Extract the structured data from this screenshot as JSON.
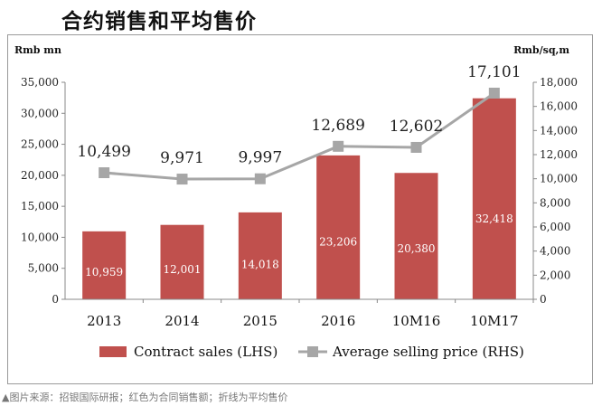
{
  "chart_data": {
    "type": "bar",
    "title": "合约销售和平均售价",
    "categories": [
      "2013",
      "2014",
      "2015",
      "2016",
      "10M16",
      "10M17"
    ],
    "series": [
      {
        "name": "Contract sales (LHS)",
        "type": "bar",
        "axis": "left",
        "color": "#c0504d",
        "values": [
          10959,
          12001,
          14018,
          23206,
          20380,
          32418
        ],
        "labels": [
          "10,959",
          "12,001",
          "14,018",
          "23,206",
          "20,380",
          "32,418"
        ]
      },
      {
        "name": "Average selling price (RHS)",
        "type": "line",
        "axis": "right",
        "color": "#a6a6a6",
        "values": [
          10499,
          9971,
          9997,
          12689,
          12602,
          17101
        ],
        "labels": [
          "10,499",
          "9,971",
          "9,997",
          "12,689",
          "12,602",
          "17,101"
        ]
      }
    ],
    "ylabel_left": "Rmb mn",
    "ylabel_right": "Rmb/sq,m",
    "ylim_left": [
      0,
      35000
    ],
    "ylim_right": [
      0,
      18000
    ],
    "yticks_left": [
      "0",
      "5,000",
      "10,000",
      "15,000",
      "20,000",
      "25,000",
      "30,000",
      "35,000"
    ],
    "yticks_right": [
      "0",
      "2,000",
      "4,000",
      "6,000",
      "8,000",
      "10,000",
      "12,000",
      "14,000",
      "16,000",
      "18,000"
    ],
    "legend": [
      "Contract sales (LHS)",
      "Average selling price (RHS)"
    ]
  },
  "caption": "▲图片来源：招银国际研报；红色为合同销售额；折线为平均售价"
}
